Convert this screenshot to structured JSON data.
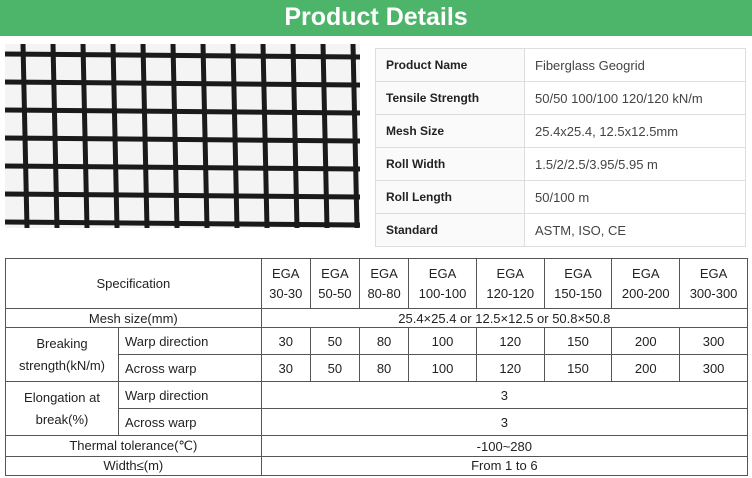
{
  "header": {
    "title": "Product Details"
  },
  "details": {
    "rows": [
      [
        "Product Name",
        "Fiberglass Geogrid"
      ],
      [
        "Tensile Strength",
        "50/50 100/100 120/120 kN/m"
      ],
      [
        "Mesh Size",
        "25.4x25.4, 12.5x12.5mm"
      ],
      [
        "Roll Width",
        "1.5/2/2.5/3.95/5.95 m"
      ],
      [
        "Roll Length",
        "50/100 m"
      ],
      [
        "Standard",
        "ASTM, ISO, CE"
      ]
    ]
  },
  "spec": {
    "header": "Specification",
    "models": [
      [
        "EGA",
        "30-30"
      ],
      [
        "EGA",
        "50-50"
      ],
      [
        "EGA",
        "80-80"
      ],
      [
        "EGA",
        "100-100"
      ],
      [
        "EGA",
        "120-120"
      ],
      [
        "EGA",
        "150-150"
      ],
      [
        "EGA",
        "200-200"
      ],
      [
        "EGA",
        "300-300"
      ]
    ],
    "mesh": {
      "label": "Mesh size(mm)",
      "value": "25.4×25.4  or 12.5×12.5 or 50.8×50.8"
    },
    "breaking": {
      "label": "Breaking strength(kN/m)",
      "sub": [
        {
          "label": "Warp direction",
          "values": [
            30,
            50,
            80,
            100,
            120,
            150,
            200,
            300
          ]
        },
        {
          "label": "Across warp",
          "values": [
            30,
            50,
            80,
            100,
            120,
            150,
            200,
            300
          ]
        }
      ]
    },
    "elongation": {
      "label": "Elongation at break(%)",
      "sub": [
        {
          "label": "Warp direction",
          "value": "3"
        },
        {
          "label": "Across warp",
          "value": "3"
        }
      ]
    },
    "thermal": {
      "label": "Thermal tolerance(℃)",
      "value": "-100~280"
    },
    "width": {
      "label": "Width≤(m)",
      "value": "From 1 to 6"
    }
  }
}
